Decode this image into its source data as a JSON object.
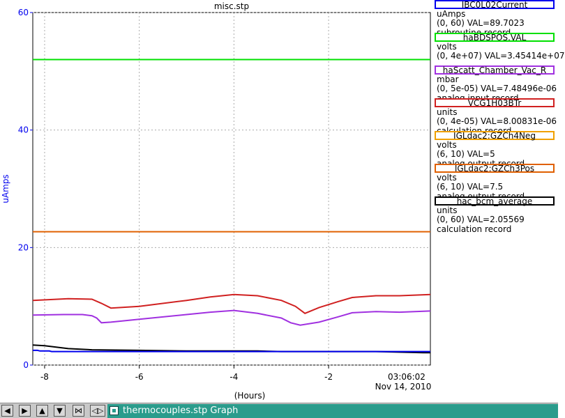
{
  "chart_data": {
    "type": "line",
    "title": "misc.stp",
    "xlabel": "(Hours)",
    "ylabel": "uAmps",
    "xlim": [
      -8.25,
      0.15
    ],
    "ylim": [
      0,
      60
    ],
    "x_ticks": [
      -8,
      -6,
      -4,
      -2
    ],
    "x_tick_labels": [
      "-8",
      "-6",
      "-4",
      "-2"
    ],
    "y_ticks": [
      0,
      20,
      40,
      60
    ],
    "y_tick_labels": [
      "0",
      "20",
      "40",
      "60"
    ],
    "time_label": "03:06:02",
    "date_label": "Nov 14, 2010",
    "grid": true,
    "series": [
      {
        "name": "haBDSPOS.VAL",
        "color": "#00e000",
        "x": [
          -8.25,
          0.15
        ],
        "y": [
          52,
          52
        ]
      },
      {
        "name": "IGLdac2:GZCh3Pos",
        "color": "#e06000",
        "x": [
          -8.25,
          0.15
        ],
        "y": [
          22.7,
          22.7
        ]
      },
      {
        "name": "hac_bcm_average",
        "color": "#000000",
        "x": [
          -8.25,
          -8.0,
          -7.5,
          -7.0,
          -6.0,
          -5.0,
          -4.5,
          -3.5,
          -3.0,
          -2.8,
          -2.0,
          -1.0,
          0.0,
          0.15
        ],
        "y": [
          3.4,
          3.3,
          2.8,
          2.6,
          2.5,
          2.4,
          2.4,
          2.4,
          2.3,
          2.3,
          2.3,
          2.3,
          2.1,
          2.1
        ]
      },
      {
        "name": "haScatt_Chamber_Vac_R",
        "color": "#a030e0",
        "x": [
          -8.25,
          -7.6,
          -7.2,
          -7.0,
          -6.9,
          -6.8,
          -6.6,
          -6.0,
          -5.0,
          -4.5,
          -4.0,
          -3.5,
          -3.0,
          -2.8,
          -2.6,
          -2.2,
          -1.8,
          -1.5,
          -1.0,
          -0.5,
          0.15
        ],
        "y": [
          8.5,
          8.6,
          8.6,
          8.4,
          8.0,
          7.2,
          7.3,
          7.8,
          8.6,
          9.0,
          9.3,
          8.8,
          8.0,
          7.2,
          6.8,
          7.3,
          8.2,
          8.9,
          9.1,
          9.0,
          9.2
        ]
      },
      {
        "name": "VCG1H03BTr",
        "color": "#d02020",
        "x": [
          -8.25,
          -7.5,
          -7.0,
          -6.8,
          -6.6,
          -6.0,
          -5.0,
          -4.5,
          -4.0,
          -3.5,
          -3.0,
          -2.7,
          -2.5,
          -2.2,
          -1.8,
          -1.5,
          -1.0,
          -0.5,
          0.15
        ],
        "y": [
          11.0,
          11.3,
          11.2,
          10.5,
          9.7,
          10.0,
          11.0,
          11.6,
          12.0,
          11.8,
          11.0,
          10.0,
          8.8,
          9.8,
          10.8,
          11.5,
          11.8,
          11.8,
          12.0
        ]
      },
      {
        "name": "IBC0L02Current",
        "color": "#0000ee",
        "x": [
          -8.25,
          -8.15,
          -8.1,
          -7.9,
          -7.85,
          -7.55,
          -7.52,
          -7.2,
          -7.15,
          -7.15,
          -6.95,
          -6.9,
          -6.7,
          -6.68,
          -6.6,
          -6.58,
          -6.3,
          -6.3,
          -6.25,
          -6.18,
          -6.18,
          -6.1,
          -6.08,
          -6.05,
          -6.0,
          -6.0,
          -5.95,
          -5.9,
          -5.9,
          -5.7,
          -5.7,
          -5.65,
          -5.6,
          -5.55,
          -5.55,
          -5.5,
          -5.5,
          -5.45,
          -5.4,
          -5.35,
          -5.35,
          -5.3,
          -5.28,
          -5.25,
          -5.22,
          -5.2,
          -5.18,
          -5.15,
          -5.12,
          -5.1,
          -5.1,
          -4.4,
          -4.4,
          -4.3,
          -4.28,
          -4.25,
          -4.2,
          -4.2,
          -4.1,
          -4.08,
          -4.05,
          -4.05,
          -4.0,
          -3.95,
          -3.9,
          -3.88,
          -3.85,
          -3.85,
          -3.45,
          -3.4,
          -3.3,
          -3.1,
          -3.0,
          -2.95,
          -2.92,
          -2.9,
          -2.85,
          -2.8,
          -2.75,
          -2.7,
          -2.65,
          -2.6,
          -2.5,
          -2.0,
          -1.5,
          -1.45,
          -1.4,
          -1.3,
          -1.25,
          -1.2,
          -1.1,
          -1.0,
          -0.95,
          -0.9,
          -0.9,
          -0.85,
          -0.8,
          -0.7,
          -0.65,
          -0.6,
          -0.55,
          -0.5,
          -0.45,
          -0.35,
          -0.3,
          -0.1,
          -0.08,
          -0.05,
          -0.03,
          0.0,
          0.15
        ],
        "y": [
          2.5,
          2.5,
          2.4,
          2.4,
          2.3,
          2.3,
          2.3,
          2.3,
          2.3,
          2.3,
          2.3,
          2.3,
          2.3,
          2.3,
          2.3,
          2.3,
          2.3,
          2.3,
          2.3,
          2.3,
          2.3,
          2.3,
          2.3,
          2.3,
          2.3,
          2.3,
          2.3,
          2.3,
          2.3,
          2.3,
          2.3,
          2.3,
          2.3,
          2.3,
          2.3,
          2.3,
          2.3,
          2.3,
          2.3,
          2.3,
          2.3,
          2.3,
          2.3,
          2.3,
          2.3,
          2.3,
          2.3,
          2.3,
          2.3,
          2.3,
          2.3,
          2.3,
          2.3,
          2.3,
          2.3,
          2.3,
          2.3,
          2.3,
          2.3,
          2.3,
          2.3,
          2.3,
          2.3,
          2.3,
          2.3,
          2.3,
          2.3,
          2.3,
          2.3,
          2.3,
          2.3,
          2.3,
          2.3,
          2.3,
          2.3,
          2.3,
          2.3,
          2.3,
          2.3,
          2.3,
          2.3,
          2.3,
          2.3,
          2.3,
          2.3,
          2.3,
          2.3,
          2.3,
          2.3,
          2.3,
          2.3,
          2.3,
          2.3,
          2.3,
          2.3,
          2.3,
          2.3,
          2.3,
          2.3,
          2.3,
          2.3,
          2.3,
          2.3,
          2.3,
          2.3,
          2.3,
          2.3,
          2.3,
          2.3,
          2.3,
          2.3
        ]
      }
    ]
  },
  "legend": [
    {
      "name": "IBC0L02Current",
      "color": "#0000ee",
      "units": "uAmps",
      "range_val": "(0, 60) VAL=89.7023",
      "record": "subroutine record"
    },
    {
      "name": "haBDSPOS.VAL",
      "color": "#00e000",
      "units": "volts",
      "range_val": "(0, 4e+07) VAL=3.45414e+07",
      "record": ""
    },
    {
      "name": "haScatt_Chamber_Vac_R",
      "color": "#a030e0",
      "units": "mbar",
      "range_val": "(0, 5e-05) VAL=7.48496e-06",
      "record": "analog input record"
    },
    {
      "name": "VCG1H03BTr",
      "color": "#d02020",
      "units": "units",
      "range_val": "(0, 4e-05) VAL=8.00831e-06",
      "record": "calculation record"
    },
    {
      "name": "IGLdac2:GZCh4Neg",
      "color": "#f0a000",
      "units": "volts",
      "range_val": "(6, 10) VAL=5",
      "record": "analog output record"
    },
    {
      "name": "IGLdac2:GZCh3Pos",
      "color": "#e06000",
      "units": "volts",
      "range_val": "(6, 10) VAL=7.5",
      "record": "analog output record"
    },
    {
      "name": "hac_bcm_average",
      "color": "#000000",
      "units": "units",
      "range_val": "(0, 60) VAL=2.05569",
      "record": "calculation record"
    }
  ],
  "taskbar": {
    "buttons": [
      {
        "name": "left-arrow",
        "glyph": "◀"
      },
      {
        "name": "right-arrow",
        "glyph": "▶"
      },
      {
        "name": "up-arrow",
        "glyph": "▲"
      },
      {
        "name": "down-arrow",
        "glyph": "▼"
      },
      {
        "name": "shrink",
        "glyph": "⋈"
      },
      {
        "name": "expand",
        "glyph": "◁▷"
      }
    ],
    "task_label": "thermocouples.stp Graph"
  }
}
